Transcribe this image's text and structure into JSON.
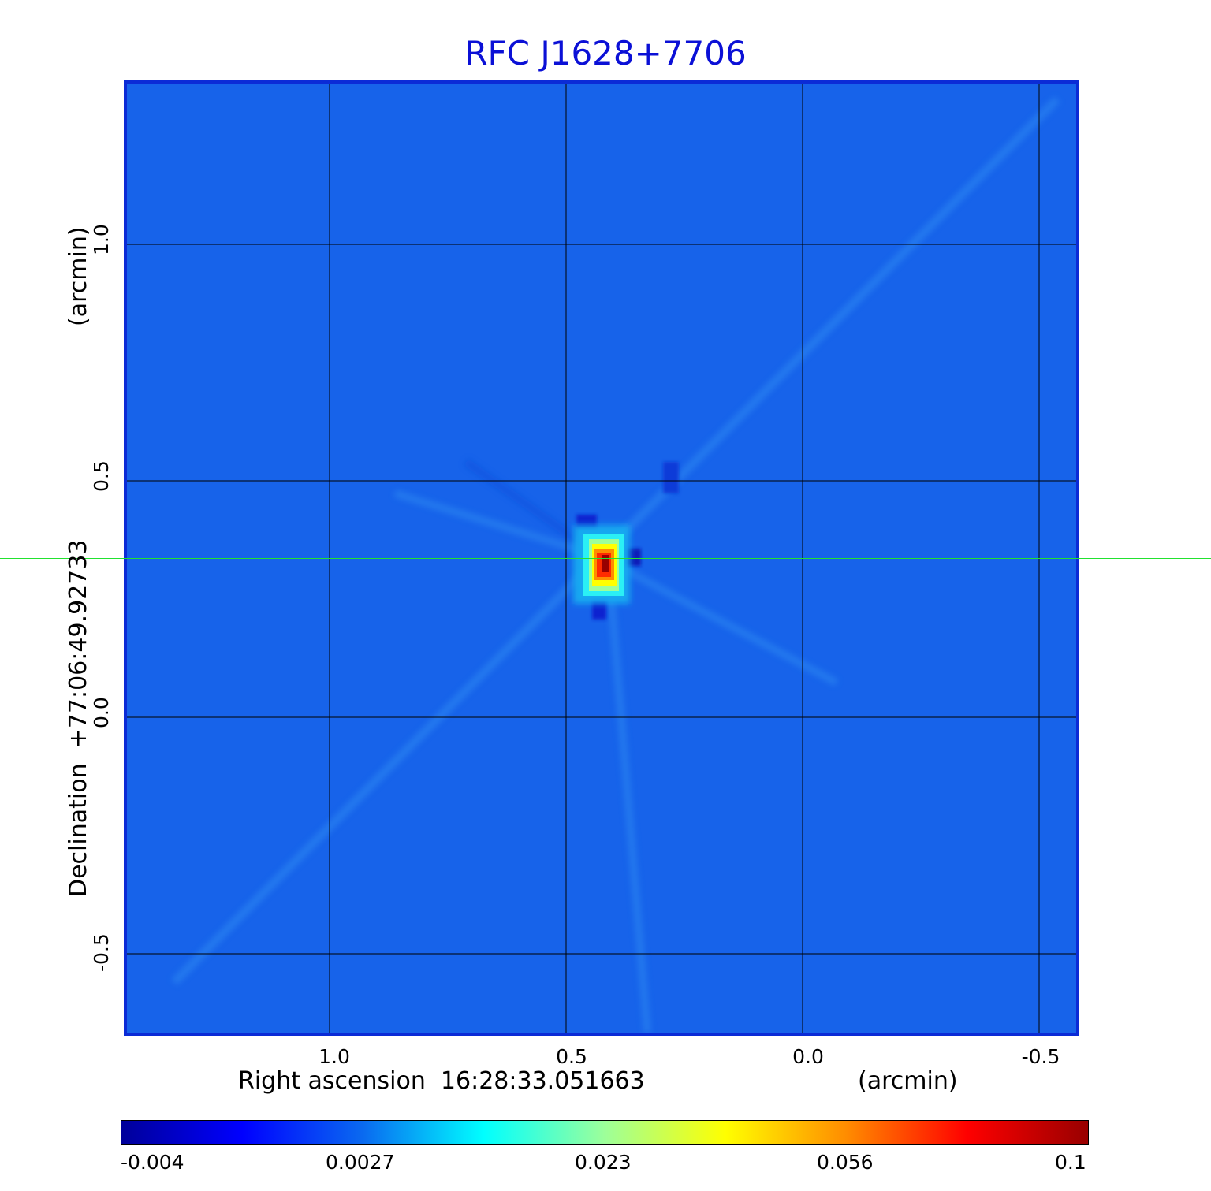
{
  "title": "RFC J1628+7706",
  "axes": {
    "x_label": "Right ascension  16:28:33.051663",
    "x_unit": "(arcmin)",
    "y_label": "Declination  +77:06:49.92733",
    "y_unit": "(arcmin)",
    "x_ticks": [
      "1.0",
      "0.5",
      "0.0",
      "-0.5"
    ],
    "y_ticks": [
      "1.0",
      "0.5",
      "0.0",
      "-0.5"
    ]
  },
  "colorbar": {
    "ticks": [
      "-0.004",
      "0.0027",
      "0.023",
      "0.056",
      "0.1"
    ],
    "colors": [
      "#00009a",
      "#0000ff",
      "#0a6af0",
      "#00ffff",
      "#9dff9a",
      "#ffff00",
      "#ff8c00",
      "#ff0000",
      "#990000"
    ]
  },
  "image": {
    "background_color": "#1763ea",
    "source": "compact bright source with radial sidelobe streaks",
    "peak_color": "#990000"
  },
  "crosshair_color": "#22e22f"
}
